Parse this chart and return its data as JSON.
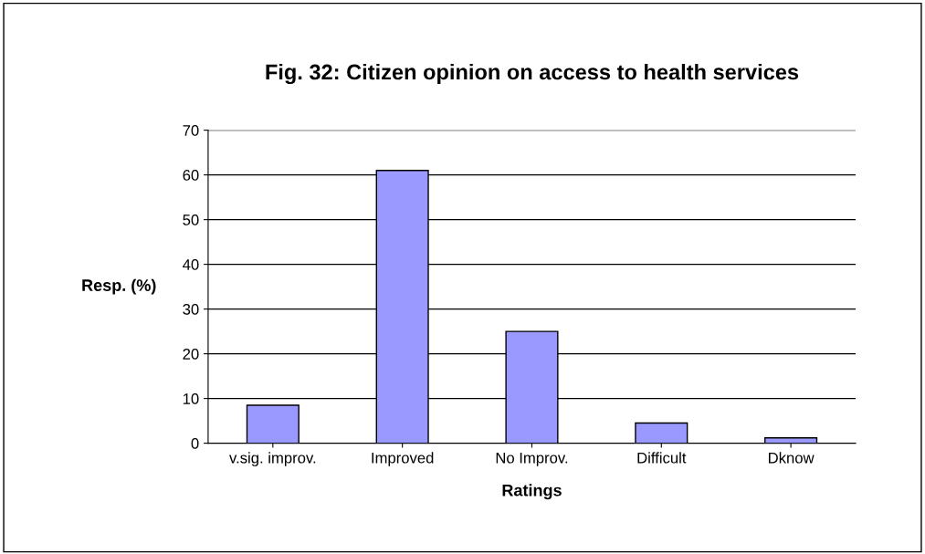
{
  "chart_data": {
    "type": "bar",
    "title": "Fig. 32: Citizen opinion on access to health services",
    "xlabel": "Ratings",
    "ylabel": "Resp. (%)",
    "categories": [
      "v.sig. improv.",
      "Improved",
      "No Improv.",
      "Difficult",
      "Dknow"
    ],
    "values": [
      8.5,
      61,
      25,
      4.5,
      1.2
    ],
    "color": "#9999ff",
    "ylim": [
      0,
      70
    ],
    "yticks": [
      0,
      10,
      20,
      30,
      40,
      50,
      60,
      70
    ],
    "grid": "y"
  }
}
